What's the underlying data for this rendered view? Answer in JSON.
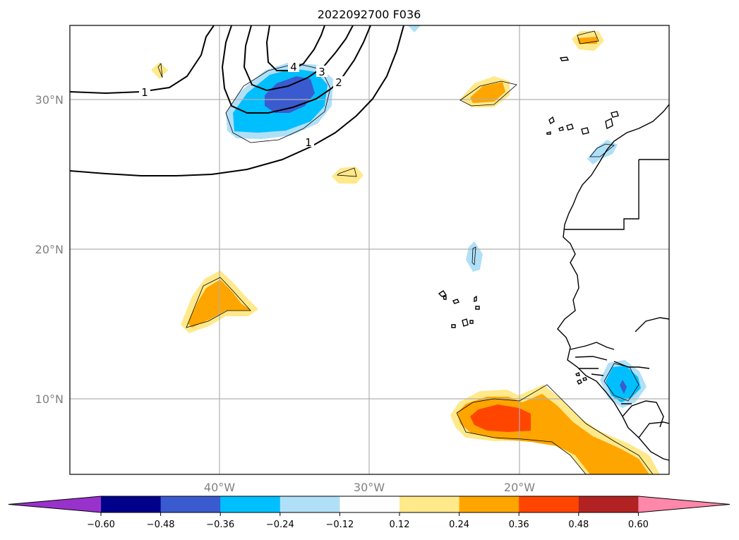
{
  "title": "2022092700 F036",
  "lat_labels": [
    "30°N",
    "20°N",
    "10°N"
  ],
  "lon_labels": [
    "40°W",
    "30°W",
    "20°W"
  ],
  "contour_labels": [
    "1",
    "1",
    "2",
    "3",
    "4"
  ],
  "colorbar": {
    "ticks": [
      "−0.60",
      "−0.48",
      "−0.36",
      "−0.24",
      "−0.12",
      "0.12",
      "0.24",
      "0.36",
      "0.48",
      "0.60"
    ],
    "colors": [
      "#9932cc",
      "#00008b",
      "#3a5bd0",
      "#00bfff",
      "#b0e0f8",
      "#ffffff",
      "#ffe98a",
      "#ffa500",
      "#ff4500",
      "#b22222",
      "#ff88aa"
    ]
  },
  "palette": {
    "neg_light": "#b0e0f8",
    "neg_mid": "#00bfff",
    "neg_strong": "#3a5bd0",
    "pos_light": "#ffe98a",
    "pos_mid": "#ffa500",
    "pos_strong": "#ff4500"
  }
}
